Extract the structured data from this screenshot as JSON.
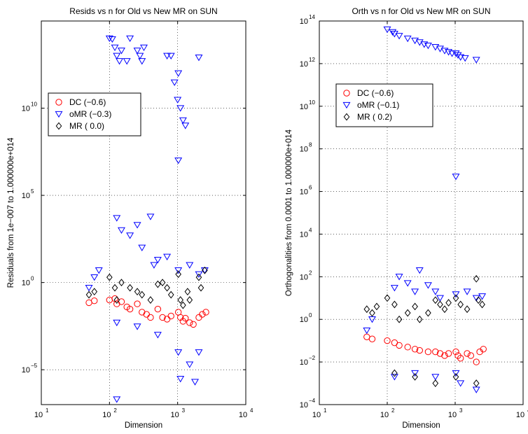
{
  "chart_data": [
    {
      "type": "scatter",
      "title": "Resids vs n for Old vs New MR on SUN",
      "xlabel": "Dimension",
      "ylabel": "Residuals from 1e−007 to 1.000000e+014",
      "xscale": "log",
      "yscale": "log",
      "xlim": [
        10,
        10000
      ],
      "ylim": [
        1e-07,
        1000000000000000.0
      ],
      "grid": true,
      "legend_position": "upper-left",
      "xticks": [
        {
          "base": "10",
          "exp": "1"
        },
        {
          "base": "10",
          "exp": "2"
        },
        {
          "base": "10",
          "exp": "3"
        },
        {
          "base": "10",
          "exp": "4"
        }
      ],
      "yticks": [
        {
          "base": "10",
          "exp": "−5",
          "value": 1e-05
        },
        {
          "base": "10",
          "exp": "0",
          "value": 1
        },
        {
          "base": "10",
          "exp": "5",
          "value": 100000.0
        },
        {
          "base": "10",
          "exp": "10",
          "value": 10000000000.0
        }
      ],
      "series": [
        {
          "name": "DC  (−0.6)",
          "marker": "circle",
          "color": "#ff0000",
          "points": [
            [
              50,
              0.07
            ],
            [
              60,
              0.09
            ],
            [
              100,
              0.1
            ],
            [
              120,
              0.12
            ],
            [
              128,
              0.06
            ],
            [
              150,
              0.08
            ],
            [
              180,
              0.04
            ],
            [
              200,
              0.03
            ],
            [
              256,
              0.06
            ],
            [
              300,
              0.02
            ],
            [
              350,
              0.015
            ],
            [
              400,
              0.01
            ],
            [
              512,
              0.03
            ],
            [
              600,
              0.01
            ],
            [
              700,
              0.008
            ],
            [
              800,
              0.012
            ],
            [
              1024,
              0.02
            ],
            [
              1100,
              0.01
            ],
            [
              1200,
              0.006
            ],
            [
              1300,
              0.009
            ],
            [
              1500,
              0.005
            ],
            [
              1700,
              0.004
            ],
            [
              2048,
              0.01
            ],
            [
              2300,
              0.015
            ],
            [
              2600,
              0.02
            ]
          ]
        },
        {
          "name": "oMR (−0.3)",
          "marker": "triangle-down",
          "color": "#0000ff",
          "points": [
            [
              50,
              0.5
            ],
            [
              60,
              2
            ],
            [
              70,
              5
            ],
            [
              100,
              100000000000000.0
            ],
            [
              110,
              90000000000000.0
            ],
            [
              120,
              30000000000000.0
            ],
            [
              128,
              10000000000000.0
            ],
            [
              140,
              5000000000000.0
            ],
            [
              150,
              20000000000000.0
            ],
            [
              180,
              5000000000000.0
            ],
            [
              200,
              100000000000000.0
            ],
            [
              256,
              20000000000000.0
            ],
            [
              280,
              10000000000000.0
            ],
            [
              300,
              5000000000000.0
            ],
            [
              320,
              30000000000000.0
            ],
            [
              700,
              10000000000000.0
            ],
            [
              800,
              10000000000000.0
            ],
            [
              900,
              300000000000.0
            ],
            [
              1000,
              30000000000.0
            ],
            [
              1024,
              1000000000000.0
            ],
            [
              1100,
              10000000000.0
            ],
            [
              1200,
              2000000000.0
            ],
            [
              1300,
              1000000000.0
            ],
            [
              1024,
              10000000.0
            ],
            [
              2048,
              8000000000000.0
            ],
            [
              128,
              5000.0
            ],
            [
              150,
              1000.0
            ],
            [
              200,
              500
            ],
            [
              256,
              2000.0
            ],
            [
              300,
              100
            ],
            [
              400,
              6000.0
            ],
            [
              450,
              10
            ],
            [
              512,
              20
            ],
            [
              700,
              30
            ],
            [
              1024,
              5
            ],
            [
              1500,
              10
            ],
            [
              2048,
              3
            ],
            [
              2500,
              5
            ],
            [
              128,
              0.005
            ],
            [
              256,
              0.003
            ],
            [
              512,
              0.001
            ],
            [
              1024,
              0.0001
            ],
            [
              1100,
              3e-06
            ],
            [
              2048,
              0.0001
            ],
            [
              1500,
              2e-05
            ],
            [
              1800,
              2e-06
            ],
            [
              128,
              2e-07
            ]
          ]
        },
        {
          "name": "MR  ( 0.0)",
          "marker": "diamond",
          "color": "#000000",
          "points": [
            [
              50,
              0.2
            ],
            [
              60,
              0.3
            ],
            [
              100,
              2
            ],
            [
              120,
              0.5
            ],
            [
              128,
              0.1
            ],
            [
              150,
              1
            ],
            [
              200,
              0.5
            ],
            [
              256,
              0.3
            ],
            [
              300,
              0.2
            ],
            [
              400,
              0.1
            ],
            [
              512,
              0.8
            ],
            [
              600,
              1
            ],
            [
              700,
              0.5
            ],
            [
              800,
              0.2
            ],
            [
              1024,
              3
            ],
            [
              1100,
              0.1
            ],
            [
              1200,
              0.05
            ],
            [
              1400,
              0.3
            ],
            [
              1500,
              0.1
            ],
            [
              2048,
              2
            ],
            [
              2200,
              0.5
            ],
            [
              2500,
              5
            ]
          ]
        }
      ]
    },
    {
      "type": "scatter",
      "title": "Orth vs n for Old vs New MR on SUN",
      "xlabel": "Dimension",
      "ylabel": "Orthogonalities from 0.0001 to 1.000000e+014",
      "xscale": "log",
      "yscale": "log",
      "xlim": [
        10,
        10000
      ],
      "ylim": [
        0.0001,
        100000000000000.0
      ],
      "grid": true,
      "legend_position": "upper-left",
      "xticks": [
        {
          "base": "10",
          "exp": "1"
        },
        {
          "base": "10",
          "exp": "2"
        },
        {
          "base": "10",
          "exp": "3"
        },
        {
          "base": "10",
          "exp": "4"
        }
      ],
      "yticks": [
        {
          "base": "10",
          "exp": "−4",
          "value": 0.0001
        },
        {
          "base": "10",
          "exp": "−2",
          "value": 0.01
        },
        {
          "base": "10",
          "exp": "0",
          "value": 1
        },
        {
          "base": "10",
          "exp": "2",
          "value": 100.0
        },
        {
          "base": "10",
          "exp": "4",
          "value": 10000.0
        },
        {
          "base": "10",
          "exp": "6",
          "value": 1000000.0
        },
        {
          "base": "10",
          "exp": "8",
          "value": 100000000.0
        },
        {
          "base": "10",
          "exp": "10",
          "value": 10000000000.0
        },
        {
          "base": "10",
          "exp": "12",
          "value": 1000000000000.0
        },
        {
          "base": "10",
          "exp": "14",
          "value": 100000000000000.0
        }
      ],
      "series": [
        {
          "name": "DC  (−0.6)",
          "marker": "circle",
          "color": "#ff0000",
          "points": [
            [
              50,
              0.15
            ],
            [
              60,
              0.12
            ],
            [
              100,
              0.1
            ],
            [
              128,
              0.08
            ],
            [
              150,
              0.06
            ],
            [
              200,
              0.05
            ],
            [
              256,
              0.04
            ],
            [
              300,
              0.035
            ],
            [
              400,
              0.03
            ],
            [
              512,
              0.03
            ],
            [
              600,
              0.025
            ],
            [
              700,
              0.02
            ],
            [
              800,
              0.025
            ],
            [
              1024,
              0.03
            ],
            [
              1100,
              0.02
            ],
            [
              1200,
              0.015
            ],
            [
              1500,
              0.025
            ],
            [
              1700,
              0.02
            ],
            [
              2048,
              0.01
            ],
            [
              2300,
              0.03
            ],
            [
              2600,
              0.04
            ]
          ]
        },
        {
          "name": "oMR (−0.1)",
          "marker": "triangle-down",
          "color": "#0000ff",
          "points": [
            [
              100,
              40000000000000.0
            ],
            [
              120,
              30000000000000.0
            ],
            [
              128,
              25000000000000.0
            ],
            [
              150,
              20000000000000.0
            ],
            [
              200,
              15000000000000.0
            ],
            [
              256,
              12000000000000.0
            ],
            [
              300,
              10000000000000.0
            ],
            [
              350,
              8000000000000.0
            ],
            [
              400,
              7000000000000.0
            ],
            [
              512,
              6000000000000.0
            ],
            [
              600,
              5000000000000.0
            ],
            [
              700,
              4000000000000.0
            ],
            [
              800,
              3500000000000.0
            ],
            [
              900,
              3000000000000.0
            ],
            [
              1024,
              3000000000000.0
            ],
            [
              1100,
              2500000000000.0
            ],
            [
              1200,
              2000000000000.0
            ],
            [
              1400,
              1800000000000.0
            ],
            [
              2048,
              1500000000000.0
            ],
            [
              1024,
              5000000.0
            ],
            [
              50,
              0.3
            ],
            [
              60,
              1
            ],
            [
              128,
              30
            ],
            [
              150,
              100
            ],
            [
              200,
              50
            ],
            [
              256,
              20
            ],
            [
              300,
              200
            ],
            [
              400,
              40
            ],
            [
              512,
              20
            ],
            [
              600,
              10
            ],
            [
              1024,
              15
            ],
            [
              1500,
              20
            ],
            [
              2048,
              10
            ],
            [
              2500,
              12
            ],
            [
              128,
              0.002
            ],
            [
              256,
              0.003
            ],
            [
              512,
              0.002
            ],
            [
              1024,
              0.003
            ],
            [
              2048,
              0.0005
            ],
            [
              1200,
              0.001
            ]
          ]
        },
        {
          "name": "MR  ( 0.2)",
          "marker": "diamond",
          "color": "#000000",
          "points": [
            [
              50,
              3
            ],
            [
              60,
              2
            ],
            [
              70,
              4
            ],
            [
              100,
              10
            ],
            [
              128,
              5
            ],
            [
              150,
              1
            ],
            [
              200,
              2
            ],
            [
              256,
              4
            ],
            [
              300,
              1
            ],
            [
              400,
              2
            ],
            [
              512,
              8
            ],
            [
              600,
              5
            ],
            [
              700,
              3
            ],
            [
              800,
              6
            ],
            [
              1024,
              10
            ],
            [
              1200,
              5
            ],
            [
              1500,
              3
            ],
            [
              2048,
              80
            ],
            [
              2200,
              8
            ],
            [
              2500,
              5
            ],
            [
              128,
              0.003
            ],
            [
              256,
              0.002
            ],
            [
              512,
              0.001
            ],
            [
              1024,
              0.002
            ],
            [
              2048,
              0.001
            ]
          ]
        }
      ]
    }
  ]
}
